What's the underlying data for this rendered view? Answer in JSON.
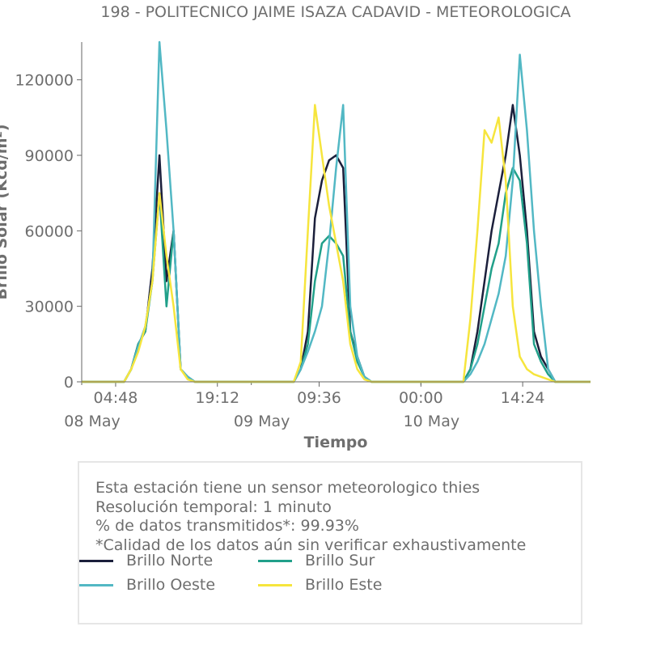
{
  "chart_data": {
    "type": "line",
    "title": "198 - POLITECNICO JAIME ISAZA CADAVID - METEOROLOGICA",
    "xlabel": "Tiempo",
    "ylabel": "Brillo Solar (Kcd/m²)",
    "ylim": [
      0,
      135000
    ],
    "xlim_hours": [
      0,
      72
    ],
    "yticks": [
      "0",
      "30000",
      "60000",
      "90000",
      "120000"
    ],
    "ytick_values": [
      0,
      30000,
      60000,
      90000,
      120000
    ],
    "xticks": [
      "04:48",
      "19:12",
      "09:36",
      "00:00",
      "14:24"
    ],
    "xtick_hours": [
      4.8,
      19.2,
      33.6,
      48,
      62.4
    ],
    "date_labels": [
      "08 May",
      "09 May",
      "10 May"
    ],
    "date_hours": [
      0,
      24,
      48
    ],
    "legend_placement": "bottom",
    "series": [
      {
        "name": "Brillo Norte",
        "color": "#1b1f3b",
        "x": [
          0,
          6,
          7,
          8,
          9,
          10,
          11,
          12,
          13,
          14,
          15,
          16,
          17,
          24,
          30,
          31,
          32,
          33,
          34,
          35,
          36,
          37,
          38,
          39,
          40,
          41,
          48,
          54,
          55,
          56,
          57,
          58,
          59,
          60,
          61,
          62,
          63,
          64,
          65,
          66,
          67,
          72
        ],
        "y": [
          0,
          0,
          5000,
          15000,
          20000,
          45000,
          90000,
          40000,
          60000,
          5000,
          2000,
          0,
          0,
          0,
          0,
          5000,
          20000,
          65000,
          80000,
          88000,
          90000,
          85000,
          20000,
          10000,
          2000,
          0,
          0,
          0,
          5000,
          20000,
          40000,
          60000,
          75000,
          90000,
          110000,
          90000,
          60000,
          20000,
          10000,
          5000,
          0,
          0
        ]
      },
      {
        "name": "Brillo Sur",
        "color": "#21a08a",
        "x": [
          0,
          6,
          7,
          8,
          9,
          10,
          11,
          12,
          13,
          14,
          15,
          16,
          17,
          24,
          30,
          31,
          32,
          33,
          34,
          35,
          36,
          37,
          38,
          39,
          40,
          41,
          48,
          54,
          55,
          56,
          57,
          58,
          59,
          60,
          61,
          62,
          63,
          64,
          65,
          66,
          67,
          72
        ],
        "y": [
          0,
          0,
          5000,
          15000,
          20000,
          40000,
          75000,
          30000,
          60000,
          5000,
          2000,
          0,
          0,
          0,
          0,
          5000,
          15000,
          40000,
          55000,
          58000,
          55000,
          50000,
          20000,
          8000,
          2000,
          0,
          0,
          0,
          5000,
          15000,
          30000,
          45000,
          55000,
          75000,
          85000,
          80000,
          55000,
          15000,
          8000,
          3000,
          0,
          0
        ]
      },
      {
        "name": "Brillo Oeste",
        "color": "#52b8c4",
        "x": [
          0,
          6,
          7,
          8,
          9,
          10,
          11,
          12,
          13,
          14,
          15,
          16,
          17,
          24,
          30,
          31,
          32,
          33,
          34,
          35,
          36,
          37,
          38,
          39,
          40,
          41,
          48,
          54,
          55,
          56,
          57,
          58,
          59,
          60,
          61,
          62,
          63,
          64,
          65,
          66,
          67,
          72
        ],
        "y": [
          0,
          0,
          5000,
          14000,
          22000,
          40000,
          135000,
          100000,
          60000,
          5000,
          2000,
          0,
          0,
          0,
          0,
          5000,
          12000,
          20000,
          30000,
          55000,
          85000,
          110000,
          30000,
          10000,
          2000,
          0,
          0,
          0,
          3000,
          8000,
          15000,
          25000,
          35000,
          50000,
          80000,
          130000,
          100000,
          60000,
          30000,
          5000,
          0,
          0
        ]
      },
      {
        "name": "Brillo Este",
        "color": "#f6e53d",
        "x": [
          0,
          6,
          7,
          8,
          9,
          10,
          11,
          12,
          13,
          14,
          15,
          16,
          17,
          24,
          30,
          31,
          32,
          33,
          34,
          35,
          36,
          37,
          38,
          39,
          40,
          41,
          48,
          54,
          55,
          56,
          57,
          58,
          59,
          60,
          61,
          62,
          63,
          64,
          65,
          66,
          67,
          72
        ],
        "y": [
          0,
          0,
          5000,
          12000,
          22000,
          40000,
          75000,
          50000,
          30000,
          5000,
          1000,
          0,
          0,
          0,
          0,
          8000,
          60000,
          110000,
          90000,
          70000,
          55000,
          40000,
          15000,
          5000,
          1000,
          0,
          0,
          0,
          25000,
          60000,
          100000,
          95000,
          105000,
          80000,
          30000,
          10000,
          5000,
          3000,
          2000,
          1000,
          0,
          0
        ]
      }
    ]
  },
  "info": {
    "line1": "Esta estación tiene un sensor meteorologico thies",
    "line2": "Resolución temporal: 1 minuto",
    "line3": "% de datos transmitidos*: 99.93%",
    "line4": "*Calidad de los datos aún sin verificar exhaustivamente"
  }
}
